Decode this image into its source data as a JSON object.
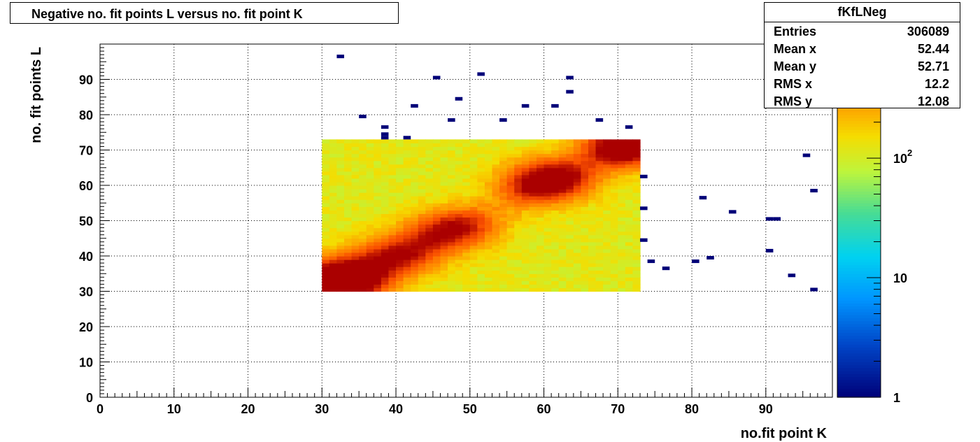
{
  "chart_data": {
    "type": "heatmap",
    "title": "Negative no. fit points L versus no. fit point K",
    "xlabel": "no.fit point K",
    "ylabel": "no. fit points  L",
    "xlim": [
      0,
      99
    ],
    "ylim": [
      0,
      100
    ],
    "x_ticks": [
      "0",
      "10",
      "20",
      "30",
      "40",
      "50",
      "60",
      "70",
      "80",
      "90"
    ],
    "y_ticks": [
      "0",
      "10",
      "20",
      "30",
      "40",
      "50",
      "60",
      "70",
      "80",
      "90"
    ],
    "grid": true,
    "z_scale": "log",
    "z_range": [
      1,
      900
    ],
    "z_tick_labels": [
      {
        "value": 1,
        "label": "1"
      },
      {
        "value": 10,
        "label": "10"
      },
      {
        "value": 100,
        "label": "10^2"
      }
    ],
    "dense_region": {
      "x": [
        30,
        73
      ],
      "y": [
        30,
        73
      ],
      "typical_count": 120
    },
    "hot_spots": [
      {
        "x": 31,
        "y": 31,
        "count": 800
      },
      {
        "x": 33,
        "y": 34,
        "count": 500
      },
      {
        "x": 60,
        "y": 61,
        "count": 650
      },
      {
        "x": 71,
        "y": 71,
        "count": 750
      },
      {
        "x": 47,
        "y": 47,
        "count": 420
      },
      {
        "x": 40,
        "y": 40,
        "count": 380
      }
    ],
    "sparse_points": [
      {
        "x": 32,
        "y": 96
      },
      {
        "x": 35,
        "y": 79
      },
      {
        "x": 38,
        "y": 76
      },
      {
        "x": 38,
        "y": 74
      },
      {
        "x": 38,
        "y": 73
      },
      {
        "x": 41,
        "y": 73
      },
      {
        "x": 42,
        "y": 82
      },
      {
        "x": 45,
        "y": 90
      },
      {
        "x": 47,
        "y": 78
      },
      {
        "x": 48,
        "y": 84
      },
      {
        "x": 51,
        "y": 91
      },
      {
        "x": 54,
        "y": 78
      },
      {
        "x": 57,
        "y": 82
      },
      {
        "x": 61,
        "y": 82
      },
      {
        "x": 63,
        "y": 90
      },
      {
        "x": 63,
        "y": 86
      },
      {
        "x": 67,
        "y": 78
      },
      {
        "x": 71,
        "y": 76
      },
      {
        "x": 73,
        "y": 62
      },
      {
        "x": 73,
        "y": 53
      },
      {
        "x": 73,
        "y": 44
      },
      {
        "x": 74,
        "y": 38
      },
      {
        "x": 76,
        "y": 36
      },
      {
        "x": 80,
        "y": 38
      },
      {
        "x": 81,
        "y": 56
      },
      {
        "x": 82,
        "y": 39
      },
      {
        "x": 85,
        "y": 52
      },
      {
        "x": 90,
        "y": 50
      },
      {
        "x": 91,
        "y": 50
      },
      {
        "x": 90,
        "y": 41
      },
      {
        "x": 93,
        "y": 34
      },
      {
        "x": 95,
        "y": 68
      },
      {
        "x": 96,
        "y": 58
      },
      {
        "x": 96,
        "y": 30
      }
    ]
  },
  "stats": {
    "name": "fKfLNeg",
    "rows": [
      {
        "label": "Entries",
        "value": "306089"
      },
      {
        "label": "Mean x",
        "value": "52.44"
      },
      {
        "label": "Mean y",
        "value": "52.71"
      },
      {
        "label": "RMS x",
        "value": "12.2"
      },
      {
        "label": "RMS y",
        "value": "12.08"
      }
    ]
  }
}
